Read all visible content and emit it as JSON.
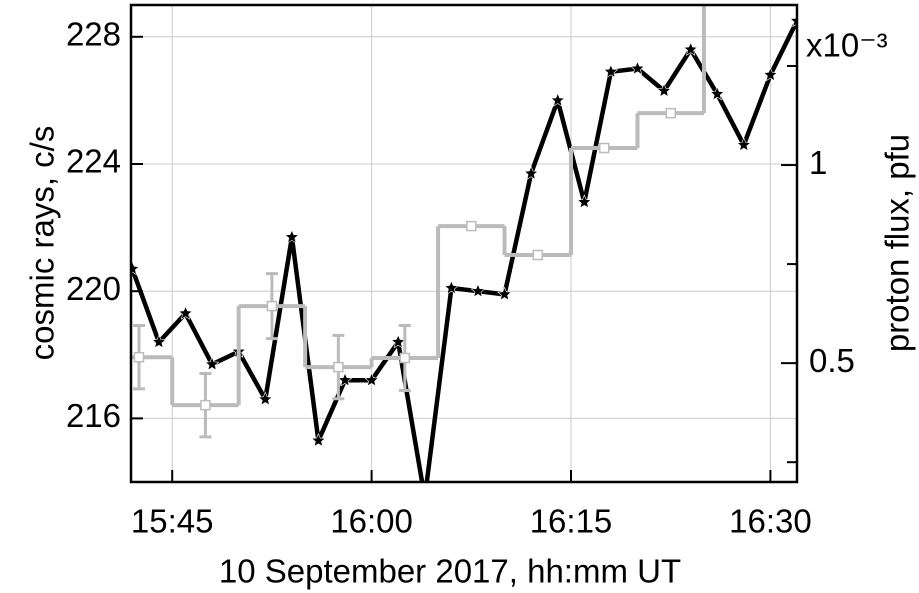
{
  "chart_data": {
    "type": "line",
    "xlabel": "10 September 2017, hh:mm UT",
    "ylabel": "cosmic rays, c/s",
    "y2label": "proton flux, pfu",
    "y2_multiplier": "x10⁻³",
    "xlim": [
      941.9,
      992
    ],
    "xticks": [
      {
        "value": 945,
        "label": "15:45"
      },
      {
        "value": 960,
        "label": "16:00"
      },
      {
        "value": 975,
        "label": "16:15"
      },
      {
        "value": 990,
        "label": "16:30"
      }
    ],
    "ylim": [
      214,
      229
    ],
    "yticks": [
      216,
      220,
      224,
      228
    ],
    "y2lim": [
      0.2,
      1.404
    ],
    "y2ticks": [
      0.5,
      1
    ],
    "y2minor": [
      0.25,
      0.75,
      1.25
    ],
    "grid": true,
    "series": [
      {
        "color": "#000000",
        "marker": "star",
        "x": [
          942,
          944,
          946,
          948,
          950,
          952,
          954,
          956,
          958,
          960,
          962,
          964,
          966,
          968,
          970,
          972,
          974,
          976,
          978,
          980,
          982,
          984,
          986,
          988,
          990,
          992
        ],
        "values": [
          220.7,
          218.4,
          219.3,
          217.7,
          218.1,
          216.6,
          221.7,
          215.3,
          217.2,
          217.2,
          218.4,
          213.5,
          220.1,
          220.0,
          219.9,
          223.7,
          226.0,
          222.8,
          226.9,
          227.0,
          226.3,
          227.6,
          226.2,
          224.6,
          226.8,
          228.5
        ]
      },
      {
        "color": "#bbbbbb",
        "marker": "square",
        "axis": "y2",
        "step_width": 5,
        "x": [
          942.5,
          947.5,
          952.5,
          957.5,
          962.5,
          967.5,
          972.5,
          977.5,
          982.5,
          987.5
        ],
        "values": [
          0.515,
          0.394,
          0.644,
          0.49,
          0.513,
          0.846,
          0.773,
          1.043,
          1.131,
          1.45
        ],
        "errors": [
          0.08,
          0.08,
          0.082,
          0.08,
          0.082,
          null,
          null,
          null,
          null,
          null
        ]
      }
    ]
  }
}
